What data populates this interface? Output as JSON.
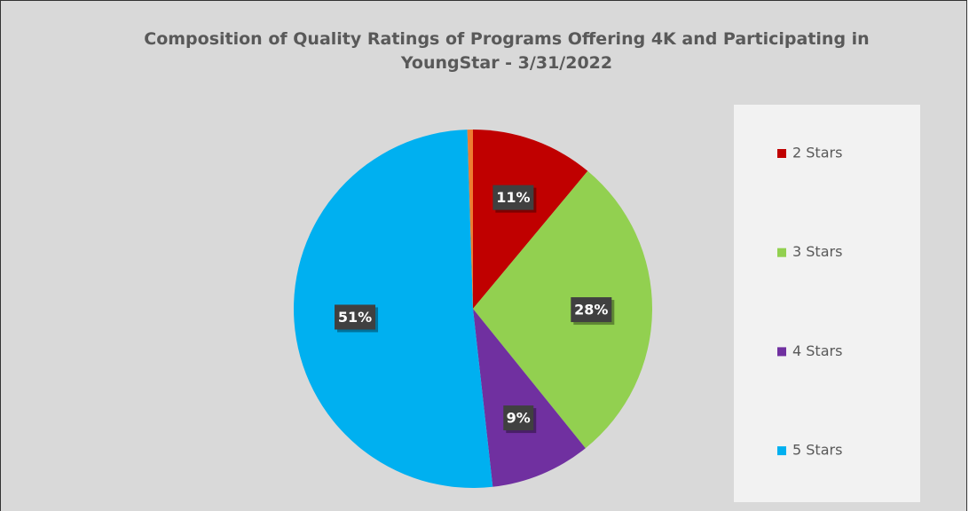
{
  "chart_data": {
    "type": "pie",
    "title": "Composition of Quality Ratings of Programs Offering 4K and Participating in YoungStar - 3/31/2022",
    "categories": [
      "2 Stars",
      "3 Stars",
      "4 Stars",
      "5 Stars",
      null
    ],
    "values": [
      11,
      28,
      9,
      51,
      0.5
    ],
    "value_labels": [
      "11%",
      "28%",
      "9%",
      "51%",
      null
    ],
    "colors": [
      "#c00000",
      "#92d050",
      "#7030a0",
      "#00b0f0",
      "#ed7d31"
    ],
    "legend": "right"
  }
}
